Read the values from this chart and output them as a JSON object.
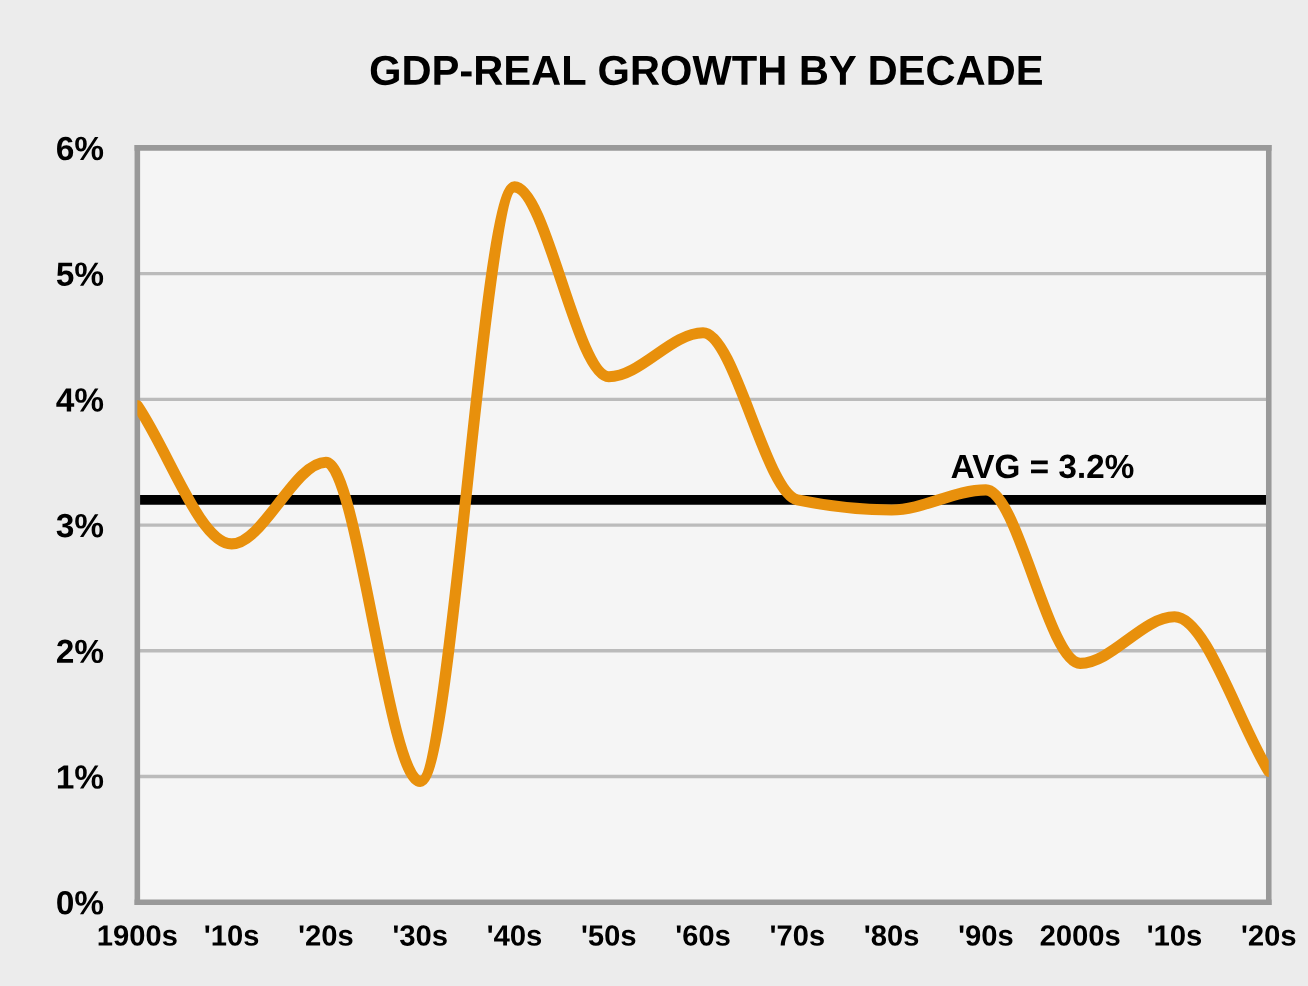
{
  "chart_data": {
    "type": "line",
    "title": "GDP-REAL GROWTH BY DECADE",
    "categories": [
      "1900s",
      "'10s",
      "'20s",
      "'30s",
      "'40s",
      "'50s",
      "'60s",
      "'70s",
      "'80s",
      "'90s",
      "2000s",
      "'10s",
      "'20s"
    ],
    "series": [
      {
        "color": "#e8900c",
        "values": [
          3.95,
          2.85,
          3.5,
          0.96,
          5.69,
          4.18,
          4.53,
          3.2,
          3.12,
          3.28,
          1.9,
          2.27,
          1.04
        ]
      }
    ],
    "ylim": [
      0,
      6
    ],
    "yticks": [
      {
        "value": 0,
        "label": "0%"
      },
      {
        "value": 1,
        "label": "1%"
      },
      {
        "value": 2,
        "label": "2%"
      },
      {
        "value": 3,
        "label": "3%"
      },
      {
        "value": 4,
        "label": "4%"
      },
      {
        "value": 5,
        "label": "5%"
      },
      {
        "value": 6,
        "label": "6%"
      }
    ],
    "ref_lines": [
      {
        "axis": "y",
        "value": 3.2,
        "label": "AVG = 3.2%",
        "color": "#000000"
      }
    ],
    "grid": "y",
    "legend": false,
    "marker": "none",
    "line_style": "solid"
  }
}
